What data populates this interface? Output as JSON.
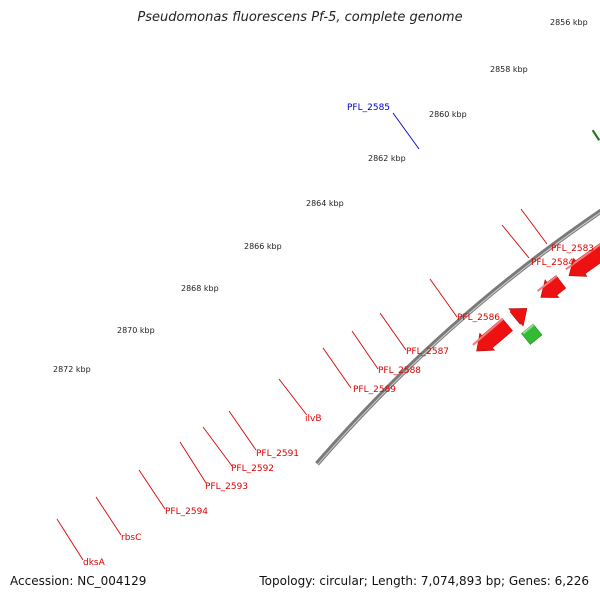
{
  "title": "Pseudomonas fluorescens Pf-5, complete genome",
  "accession": "Accession: NC_004129",
  "topology": "Topology: circular; Length: 7,074,893 bp; Genes: 6,226",
  "colors": {
    "backbone": "#7a7a7a",
    "tick_minor": "#1f7a1f",
    "gene_red": "#ee1111",
    "gene_cyan": "#11c8c8",
    "gene_steelblue": "#4a7fb8",
    "gene_blue": "#1010e8",
    "gene_orange": "#f08a10",
    "gene_gray": "#b8b8b8",
    "gene_green": "#33bb33",
    "gene_khaki": "#b8b070",
    "label_red": "#dd0000",
    "label_blue": "#0000cc"
  },
  "kbp_labels": [
    "2856 kbp",
    "2858 kbp",
    "2860 kbp",
    "2862 kbp",
    "2864 kbp",
    "2866 kbp",
    "2868 kbp",
    "2870 kbp",
    "2872 kbp"
  ],
  "gene_labels": [
    "PFL_2585",
    "PFL_2583",
    "PFL_2584",
    "PFL_2586",
    "PFL_2587",
    "PFL_2588",
    "PFL_2589",
    "ilvB",
    "PFL_2591",
    "PFL_2592",
    "PFL_2593",
    "PFL_2594",
    "rbsC",
    "dksA"
  ]
}
